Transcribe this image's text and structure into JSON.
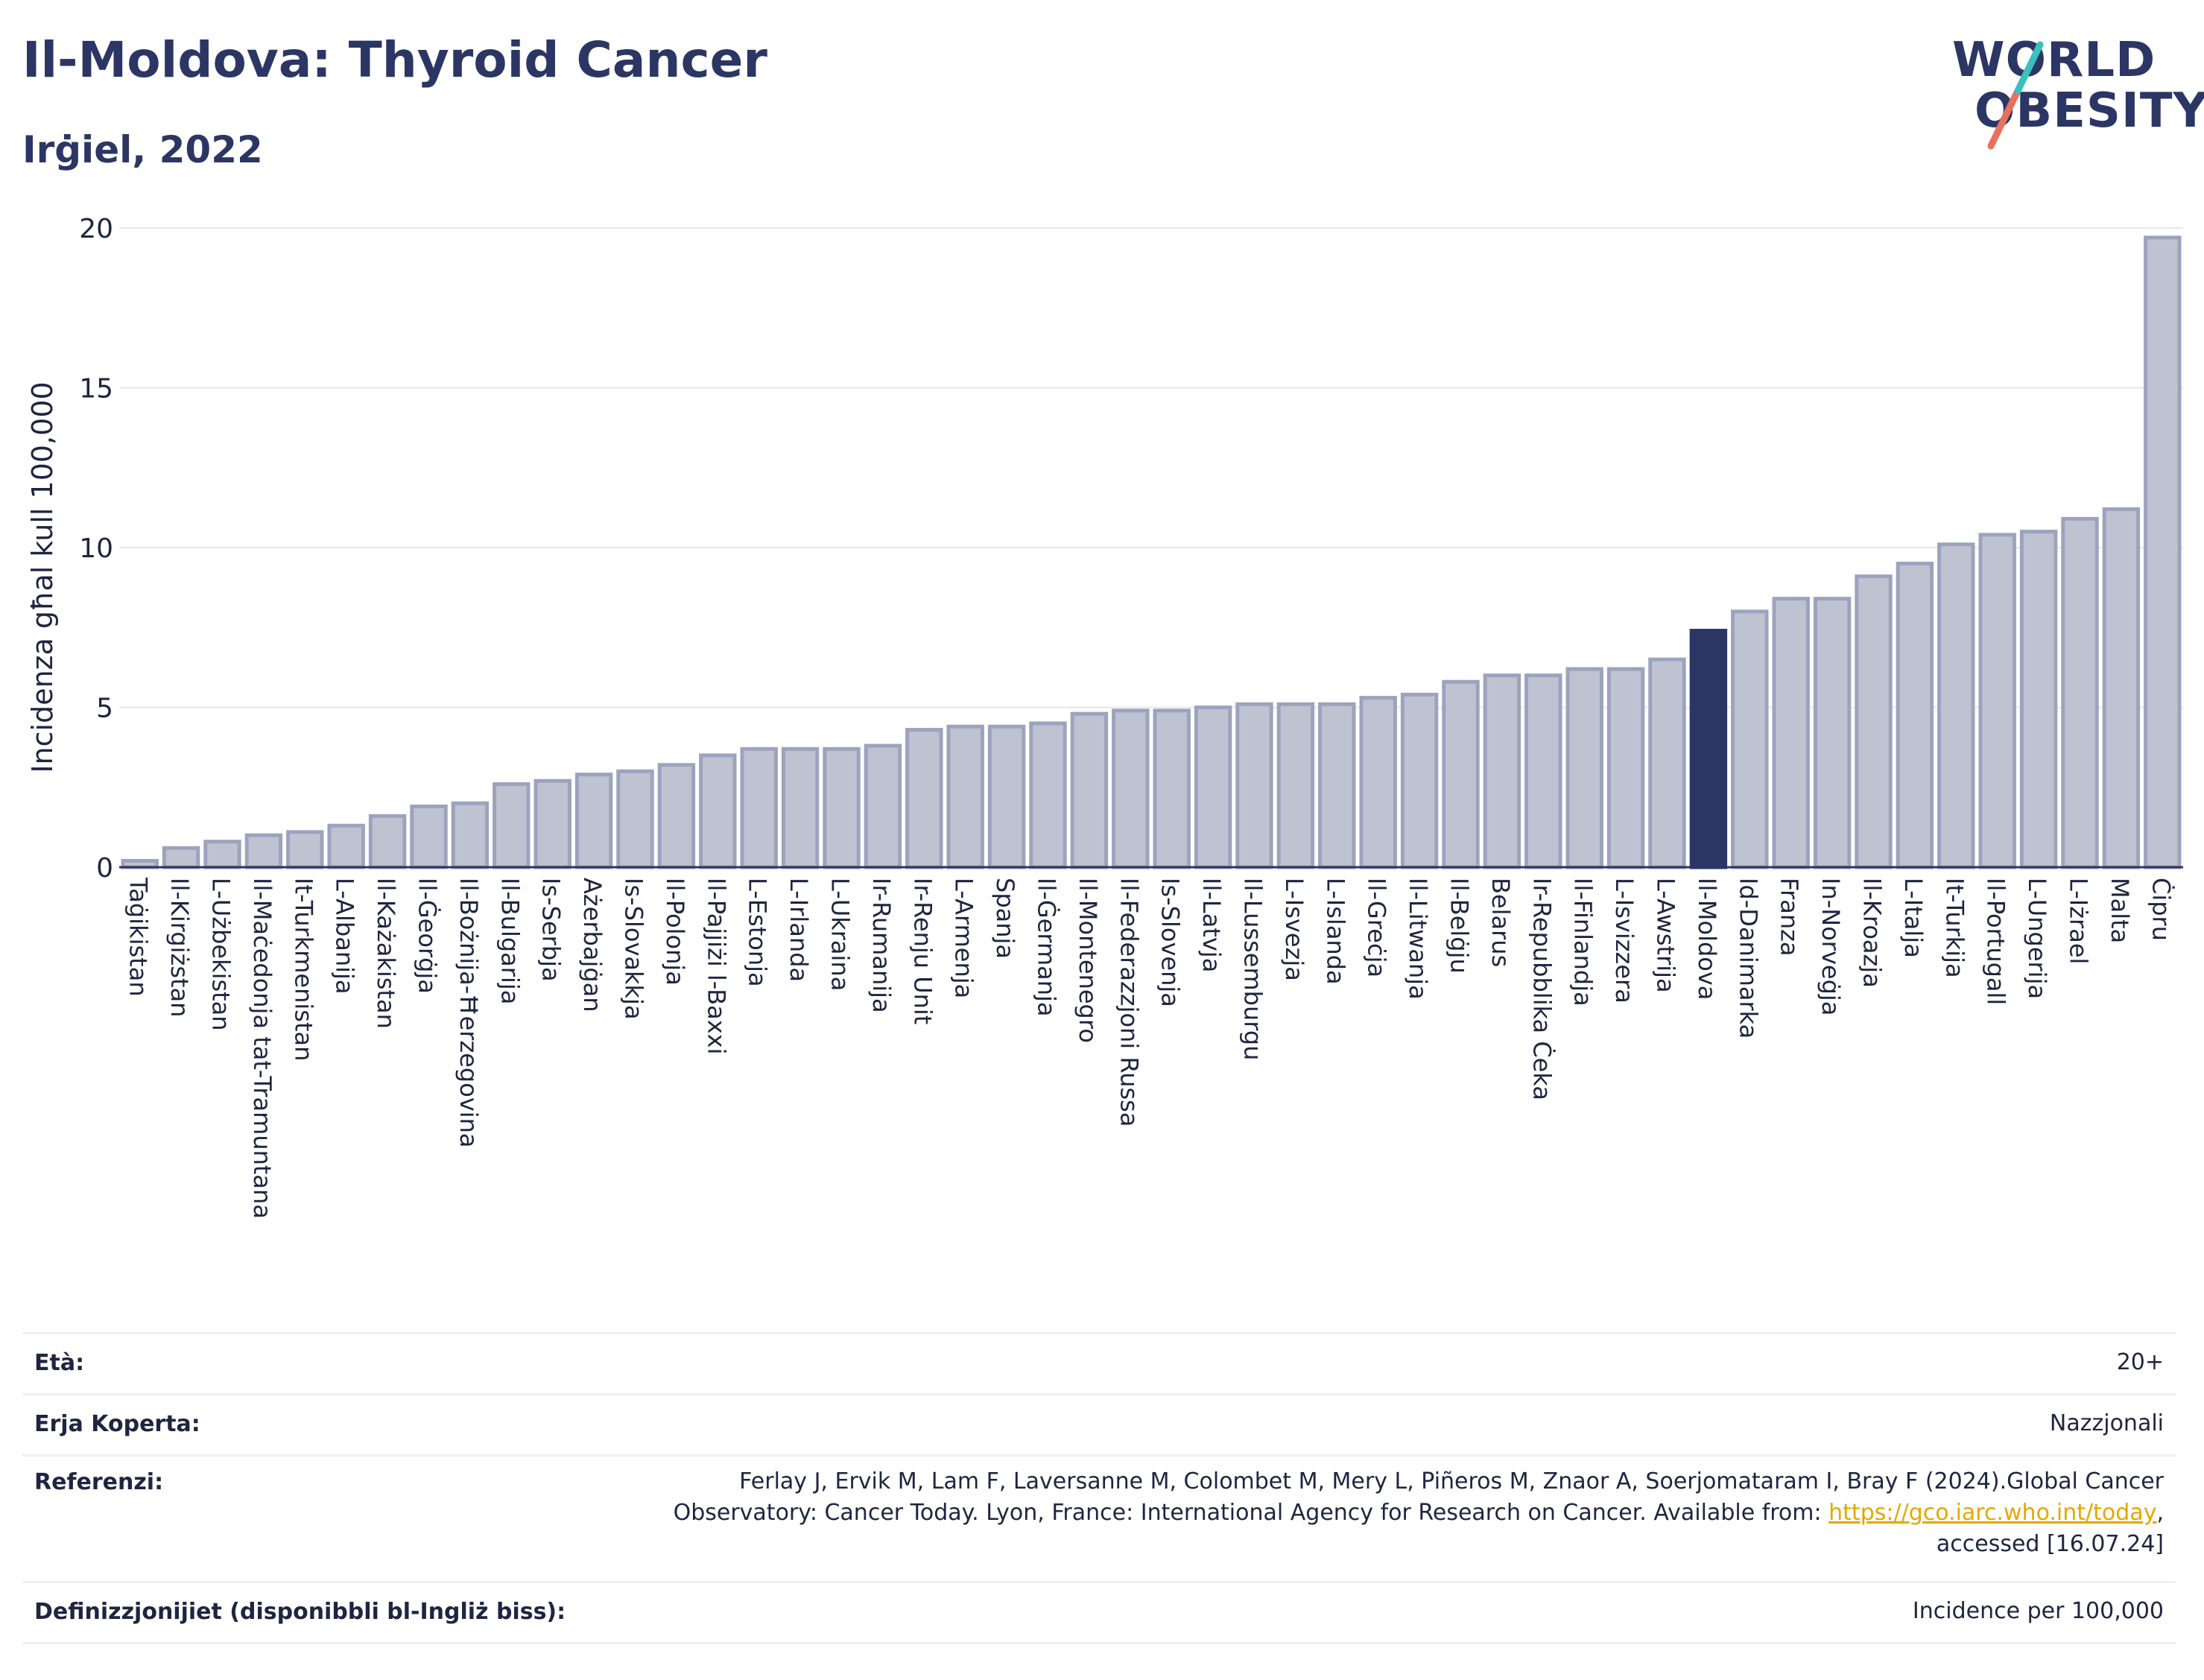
{
  "header": {
    "title": "Il-Moldova: Thyroid Cancer",
    "subtitle": "Irġiel, 2022"
  },
  "logo": {
    "line1": "WORLD",
    "line2": "OBESITY"
  },
  "chart_data": {
    "type": "bar",
    "ylabel": "Incidenza għal kull 100,000",
    "ylim": [
      0,
      20
    ],
    "yticks": [
      0,
      5,
      10,
      15,
      20
    ],
    "grid": true,
    "highlight": "Il-Moldova",
    "colors": {
      "bar": "#bfc3d1",
      "bar_edge": "#9ca3bd",
      "highlight": "#2b3664",
      "grid": "#e4e6ec"
    },
    "categories": [
      "Taġikistan",
      "Il-Kirgiżstan",
      "L-Użbekistan",
      "Il-Maċedonja tat-Tramuntana",
      "It-Turkmenistan",
      "L-Albanija",
      "Il-Każakistan",
      "Il-Ġeorġja",
      "Il-Bożnija-Ħerzegovina",
      "Il-Bulgarija",
      "Is-Serbja",
      "Ażerbajġan",
      "Is-Slovakkja",
      "Il-Polonja",
      "Il-Pajjiżi l-Baxxi",
      "L-Estonja",
      "L-Irlanda",
      "L-Ukraina",
      "Ir-Rumanija",
      "Ir-Renju Unit",
      "L-Armenja",
      "Spanja",
      "Il-Ġermanja",
      "Il-Montenegro",
      "Il-Federazzjoni Russa",
      "Is-Slovenja",
      "Il-Latvja",
      "Il-Lussemburgu",
      "L-Isvezja",
      "L-Islanda",
      "Il-Greċja",
      "Il-Litwanja",
      "Il-Belġju",
      "Belarus",
      "Ir-Repubblika Ċeka",
      "Il-Finlandja",
      "L-Isvizzera",
      "L-Awstrija",
      "Il-Moldova",
      "Id-Danimarka",
      "Franza",
      "In-Norveġja",
      "Il-Kroazja",
      "L-Italja",
      "It-Turkija",
      "Il-Portugall",
      "L-Ungerija",
      "L-Iżrael",
      "Malta",
      "Ċipru"
    ],
    "values": [
      0.2,
      0.6,
      0.8,
      1.0,
      1.1,
      1.3,
      1.6,
      1.9,
      2.0,
      2.6,
      2.7,
      2.9,
      3.0,
      3.2,
      3.5,
      3.7,
      3.7,
      3.7,
      3.8,
      4.3,
      4.4,
      4.4,
      4.5,
      4.8,
      4.9,
      4.9,
      5.0,
      5.1,
      5.1,
      5.1,
      5.3,
      5.4,
      5.8,
      6.0,
      6.0,
      6.2,
      6.2,
      6.5,
      7.4,
      8.0,
      8.4,
      8.4,
      9.1,
      9.5,
      10.1,
      10.4,
      10.5,
      10.9,
      11.2,
      19.7
    ]
  },
  "meta": {
    "age_label": "Età:",
    "age_value": "20+",
    "coverage_label": "Erja Koperta:",
    "coverage_value": "Nazzjonali",
    "refs_label": "Referenzi:",
    "refs_line1": "Ferlay J, Ervik M, Lam F, Laversanne M, Colombet M, Mery L, Piñeros M, Znaor A, Soerjomataram I, Bray F (2024).Global Cancer",
    "refs_line2": "Observatory: Cancer Today. Lyon, France: International Agency for Research on Cancer. Available from: ",
    "refs_link": "https://gco.iarc.who.int/today",
    "refs_line2_end": ",",
    "refs_line3": "accessed [16.07.24]",
    "defs_label": "Definizzjonijiet (disponibbli bl-Ingliż biss):",
    "defs_value": "Incidence per 100,000"
  }
}
